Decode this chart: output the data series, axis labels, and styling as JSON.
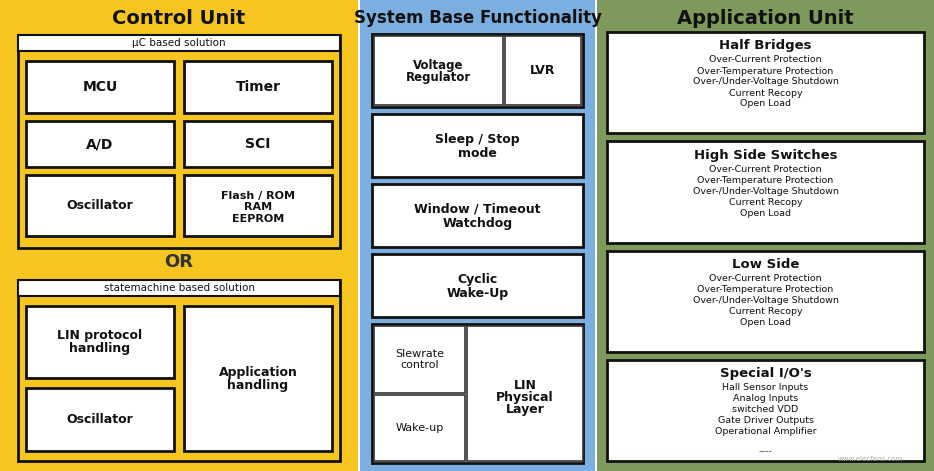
{
  "title_control": "Control Unit",
  "title_system": "System Base Functionality",
  "title_application": "Application Unit",
  "bg_yellow": "#F7C520",
  "bg_blue": "#7AAFE0",
  "bg_green": "#7D9A5C",
  "bg_white": "#FFFFFF",
  "text_dark": "#111111",
  "figsize": [
    9.34,
    4.71
  ],
  "dpi": 100
}
